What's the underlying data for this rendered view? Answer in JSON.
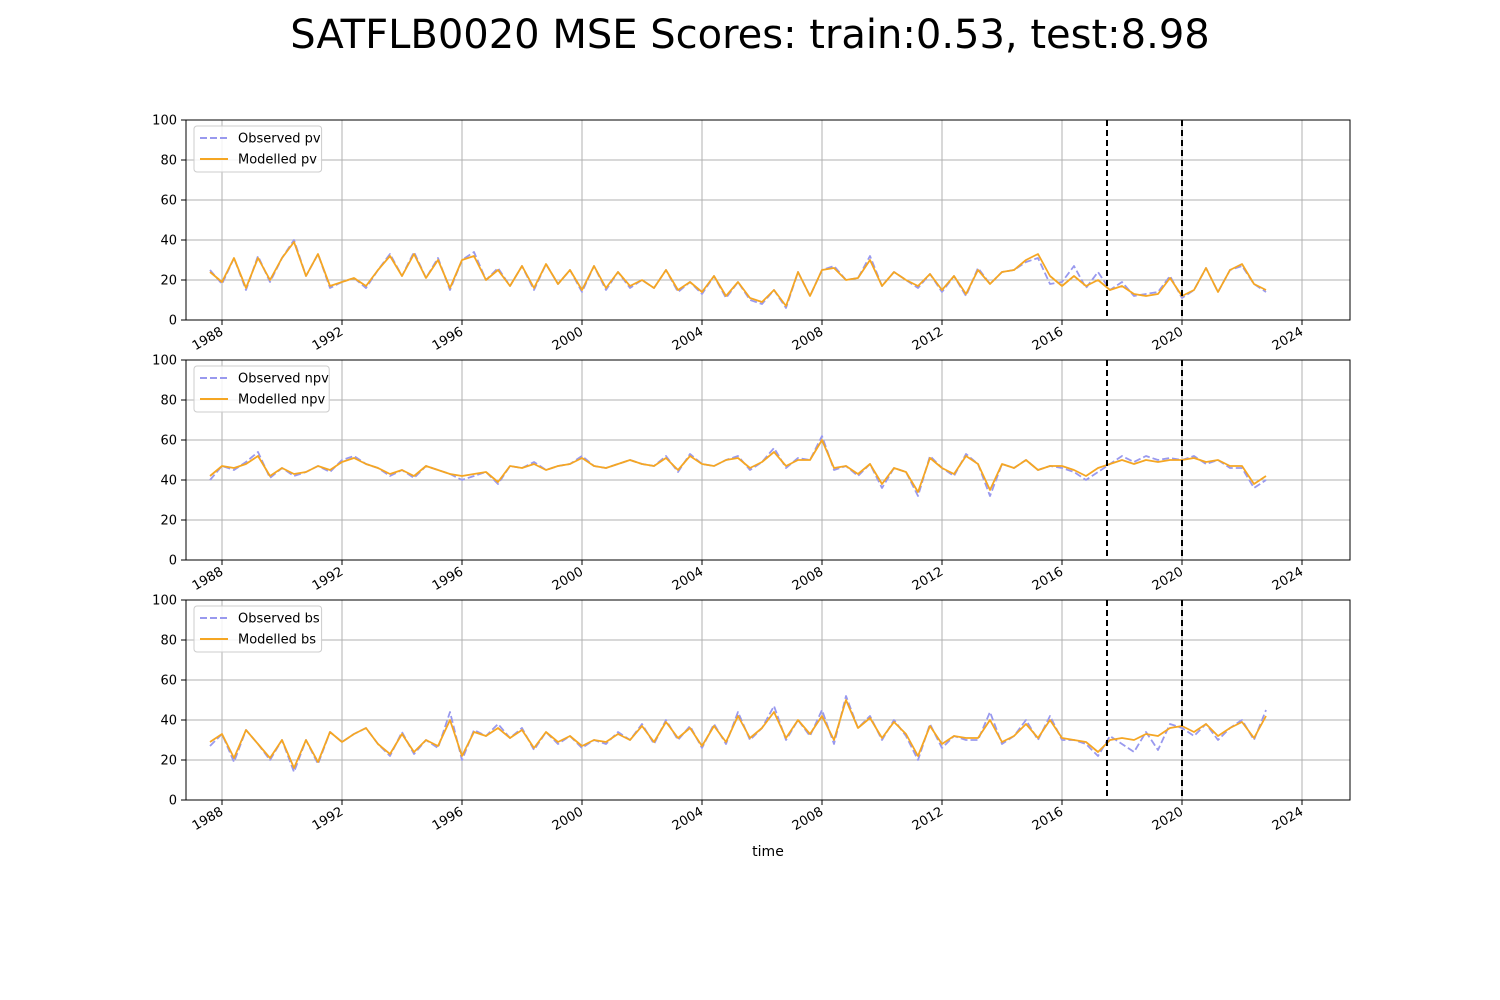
{
  "title": "SATFLB0020 MSE Scores: train:0.53, test:8.98",
  "chart_data": [
    {
      "type": "line",
      "ylim": [
        0,
        100
      ],
      "yticks": [
        0,
        20,
        40,
        60,
        80,
        100
      ],
      "xlim": [
        1986.8,
        2025.6
      ],
      "xticks": [
        1988,
        1992,
        1996,
        2000,
        2004,
        2008,
        2012,
        2016,
        2020,
        2024
      ],
      "xtick_labels": [
        "1988",
        "1992",
        "1996",
        "2000",
        "2004",
        "2008",
        "2012",
        "2016",
        "2020",
        "2024"
      ],
      "xlabel": "",
      "grid": true,
      "legend_position": "top-left",
      "vlines": [
        2017.5,
        2020.0
      ],
      "x": [
        1987.6,
        1988.0,
        1988.4,
        1988.8,
        1989.2,
        1989.6,
        1990.0,
        1990.4,
        1990.8,
        1991.2,
        1991.6,
        1992.0,
        1992.4,
        1992.8,
        1993.2,
        1993.6,
        1994.0,
        1994.4,
        1994.8,
        1995.2,
        1995.6,
        1996.0,
        1996.4,
        1996.8,
        1997.2,
        1997.6,
        1998.0,
        1998.4,
        1998.8,
        1999.2,
        1999.6,
        2000.0,
        2000.4,
        2000.8,
        2001.2,
        2001.6,
        2002.0,
        2002.4,
        2002.8,
        2003.2,
        2003.6,
        2004.0,
        2004.4,
        2004.8,
        2005.2,
        2005.6,
        2006.0,
        2006.4,
        2006.8,
        2007.2,
        2007.6,
        2008.0,
        2008.4,
        2008.8,
        2009.2,
        2009.6,
        2010.0,
        2010.4,
        2010.8,
        2011.2,
        2011.6,
        2012.0,
        2012.4,
        2012.8,
        2013.2,
        2013.6,
        2014.0,
        2014.4,
        2014.8,
        2015.2,
        2015.6,
        2016.0,
        2016.4,
        2016.8,
        2017.2,
        2017.6,
        2018.0,
        2018.4,
        2018.8,
        2019.2,
        2019.6,
        2020.0,
        2020.4,
        2020.8,
        2021.2,
        2021.6,
        2022.0,
        2022.4,
        2022.8
      ],
      "series": [
        {
          "name": "Observed pv",
          "color": "#9999ee",
          "dash": true,
          "values": [
            25,
            18,
            31,
            15,
            32,
            19,
            31,
            40,
            22,
            33,
            16,
            19,
            21,
            16,
            25,
            33,
            22,
            34,
            21,
            31,
            15,
            30,
            34,
            20,
            26,
            17,
            27,
            15,
            28,
            18,
            25,
            14,
            27,
            15,
            24,
            16,
            20,
            16,
            25,
            14,
            19,
            13,
            22,
            11,
            19,
            10,
            8,
            15,
            6,
            24,
            12,
            25,
            27,
            20,
            21,
            32,
            17,
            24,
            20,
            16,
            23,
            14,
            22,
            12,
            26,
            18,
            24,
            25,
            29,
            31,
            18,
            19,
            27,
            16,
            24,
            15,
            19,
            12,
            13,
            14,
            22,
            11,
            15,
            26,
            14,
            25,
            27,
            18,
            14
          ]
        },
        {
          "name": "Modelled pv",
          "color": "#f5a623",
          "dash": false,
          "values": [
            24,
            19,
            31,
            16,
            31,
            20,
            31,
            39,
            22,
            33,
            17,
            19,
            21,
            17,
            25,
            32,
            22,
            33,
            21,
            30,
            16,
            30,
            32,
            20,
            25,
            17,
            27,
            16,
            28,
            18,
            25,
            15,
            27,
            16,
            24,
            17,
            20,
            16,
            25,
            15,
            19,
            14,
            22,
            12,
            19,
            11,
            9,
            15,
            7,
            24,
            12,
            25,
            26,
            20,
            21,
            30,
            17,
            24,
            20,
            17,
            23,
            15,
            22,
            13,
            25,
            18,
            24,
            25,
            30,
            33,
            22,
            17,
            22,
            17,
            20,
            15,
            17,
            13,
            12,
            13,
            21,
            12,
            15,
            26,
            14,
            25,
            28,
            18,
            15
          ]
        }
      ]
    },
    {
      "type": "line",
      "ylim": [
        0,
        100
      ],
      "yticks": [
        0,
        20,
        40,
        60,
        80,
        100
      ],
      "xlim": [
        1986.8,
        2025.6
      ],
      "xticks": [
        1988,
        1992,
        1996,
        2000,
        2004,
        2008,
        2012,
        2016,
        2020,
        2024
      ],
      "xtick_labels": [
        "1988",
        "1992",
        "1996",
        "2000",
        "2004",
        "2008",
        "2012",
        "2016",
        "2020",
        "2024"
      ],
      "xlabel": "",
      "grid": true,
      "legend_position": "top-left",
      "vlines": [
        2017.5,
        2020.0
      ],
      "x": [
        1987.6,
        1988.0,
        1988.4,
        1988.8,
        1989.2,
        1989.6,
        1990.0,
        1990.4,
        1990.8,
        1991.2,
        1991.6,
        1992.0,
        1992.4,
        1992.8,
        1993.2,
        1993.6,
        1994.0,
        1994.4,
        1994.8,
        1995.2,
        1995.6,
        1996.0,
        1996.4,
        1996.8,
        1997.2,
        1997.6,
        1998.0,
        1998.4,
        1998.8,
        1999.2,
        1999.6,
        2000.0,
        2000.4,
        2000.8,
        2001.2,
        2001.6,
        2002.0,
        2002.4,
        2002.8,
        2003.2,
        2003.6,
        2004.0,
        2004.4,
        2004.8,
        2005.2,
        2005.6,
        2006.0,
        2006.4,
        2006.8,
        2007.2,
        2007.6,
        2008.0,
        2008.4,
        2008.8,
        2009.2,
        2009.6,
        2010.0,
        2010.4,
        2010.8,
        2011.2,
        2011.6,
        2012.0,
        2012.4,
        2012.8,
        2013.2,
        2013.6,
        2014.0,
        2014.4,
        2014.8,
        2015.2,
        2015.6,
        2016.0,
        2016.4,
        2016.8,
        2017.2,
        2017.6,
        2018.0,
        2018.4,
        2018.8,
        2019.2,
        2019.6,
        2020.0,
        2020.4,
        2020.8,
        2021.2,
        2021.6,
        2022.0,
        2022.4,
        2022.8
      ],
      "series": [
        {
          "name": "Observed npv",
          "color": "#9999ee",
          "dash": true,
          "values": [
            40,
            47,
            45,
            49,
            54,
            41,
            46,
            42,
            44,
            47,
            44,
            50,
            52,
            48,
            46,
            42,
            45,
            41,
            47,
            45,
            43,
            40,
            42,
            44,
            38,
            47,
            46,
            49,
            45,
            47,
            48,
            52,
            47,
            46,
            48,
            50,
            48,
            47,
            52,
            44,
            53,
            48,
            47,
            50,
            52,
            45,
            49,
            56,
            46,
            51,
            50,
            62,
            45,
            47,
            42,
            48,
            36,
            46,
            44,
            32,
            52,
            46,
            42,
            53,
            48,
            32,
            48,
            46,
            50,
            45,
            47,
            46,
            44,
            40,
            44,
            48,
            52,
            49,
            52,
            50,
            51,
            50,
            52,
            48,
            50,
            46,
            46,
            36,
            40
          ]
        },
        {
          "name": "Modelled npv",
          "color": "#f5a623",
          "dash": false,
          "values": [
            42,
            47,
            46,
            48,
            52,
            42,
            46,
            43,
            44,
            47,
            45,
            49,
            51,
            48,
            46,
            43,
            45,
            42,
            47,
            45,
            43,
            42,
            43,
            44,
            39,
            47,
            46,
            48,
            45,
            47,
            48,
            51,
            47,
            46,
            48,
            50,
            48,
            47,
            51,
            45,
            52,
            48,
            47,
            50,
            51,
            46,
            49,
            54,
            47,
            50,
            50,
            60,
            46,
            47,
            43,
            48,
            38,
            46,
            44,
            34,
            51,
            46,
            43,
            52,
            48,
            35,
            48,
            46,
            50,
            45,
            47,
            47,
            45,
            42,
            46,
            48,
            50,
            48,
            50,
            49,
            50,
            50,
            51,
            49,
            50,
            47,
            47,
            38,
            42
          ]
        }
      ]
    },
    {
      "type": "line",
      "ylim": [
        0,
        100
      ],
      "yticks": [
        0,
        20,
        40,
        60,
        80,
        100
      ],
      "xlim": [
        1986.8,
        2025.6
      ],
      "xticks": [
        1988,
        1992,
        1996,
        2000,
        2004,
        2008,
        2012,
        2016,
        2020,
        2024
      ],
      "xtick_labels": [
        "1988",
        "1992",
        "1996",
        "2000",
        "2004",
        "2008",
        "2012",
        "2016",
        "2020",
        "2024"
      ],
      "xlabel": "time",
      "grid": true,
      "legend_position": "top-left",
      "vlines": [
        2017.5,
        2020.0
      ],
      "x": [
        1987.6,
        1988.0,
        1988.4,
        1988.8,
        1989.2,
        1989.6,
        1990.0,
        1990.4,
        1990.8,
        1991.2,
        1991.6,
        1992.0,
        1992.4,
        1992.8,
        1993.2,
        1993.6,
        1994.0,
        1994.4,
        1994.8,
        1995.2,
        1995.6,
        1996.0,
        1996.4,
        1996.8,
        1997.2,
        1997.6,
        1998.0,
        1998.4,
        1998.8,
        1999.2,
        1999.6,
        2000.0,
        2000.4,
        2000.8,
        2001.2,
        2001.6,
        2002.0,
        2002.4,
        2002.8,
        2003.2,
        2003.6,
        2004.0,
        2004.4,
        2004.8,
        2005.2,
        2005.6,
        2006.0,
        2006.4,
        2006.8,
        2007.2,
        2007.6,
        2008.0,
        2008.4,
        2008.8,
        2009.2,
        2009.6,
        2010.0,
        2010.4,
        2010.8,
        2011.2,
        2011.6,
        2012.0,
        2012.4,
        2012.8,
        2013.2,
        2013.6,
        2014.0,
        2014.4,
        2014.8,
        2015.2,
        2015.6,
        2016.0,
        2016.4,
        2016.8,
        2017.2,
        2017.6,
        2018.0,
        2018.4,
        2018.8,
        2019.2,
        2019.6,
        2020.0,
        2020.4,
        2020.8,
        2021.2,
        2021.6,
        2022.0,
        2022.4,
        2022.8
      ],
      "series": [
        {
          "name": "Observed bs",
          "color": "#9999ee",
          "dash": true,
          "values": [
            27,
            33,
            19,
            35,
            28,
            20,
            30,
            14,
            30,
            18,
            34,
            29,
            33,
            36,
            28,
            22,
            34,
            23,
            30,
            26,
            44,
            20,
            35,
            32,
            38,
            31,
            36,
            25,
            34,
            28,
            32,
            26,
            30,
            28,
            34,
            30,
            38,
            28,
            40,
            30,
            37,
            26,
            38,
            28,
            44,
            30,
            36,
            47,
            30,
            40,
            32,
            45,
            28,
            52,
            36,
            42,
            30,
            40,
            32,
            20,
            38,
            26,
            32,
            30,
            30,
            44,
            28,
            32,
            40,
            30,
            42,
            30,
            30,
            28,
            22,
            32,
            28,
            24,
            34,
            25,
            38,
            36,
            32,
            38,
            30,
            36,
            40,
            30,
            45
          ]
        },
        {
          "name": "Modelled bs",
          "color": "#f5a623",
          "dash": false,
          "values": [
            29,
            33,
            21,
            35,
            28,
            21,
            30,
            16,
            30,
            19,
            34,
            29,
            33,
            36,
            28,
            23,
            33,
            24,
            30,
            27,
            40,
            22,
            34,
            32,
            36,
            31,
            35,
            26,
            34,
            29,
            32,
            27,
            30,
            29,
            33,
            30,
            37,
            29,
            39,
            31,
            36,
            27,
            37,
            29,
            42,
            31,
            36,
            44,
            31,
            40,
            33,
            42,
            30,
            50,
            36,
            41,
            31,
            39,
            33,
            22,
            37,
            28,
            32,
            31,
            31,
            40,
            29,
            32,
            38,
            31,
            40,
            31,
            30,
            29,
            24,
            30,
            31,
            30,
            33,
            32,
            36,
            37,
            34,
            38,
            32,
            36,
            39,
            31,
            42
          ]
        }
      ]
    }
  ]
}
